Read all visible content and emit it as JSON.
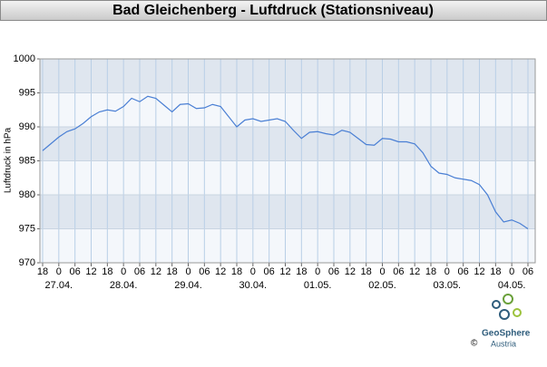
{
  "chart_data": {
    "type": "line",
    "title": "Bad Gleichenberg - Luftdruck (Stationsniveau)",
    "ylabel": "Luftdruck in hPa",
    "x_tick_labels": [
      "18",
      "0",
      "06",
      "12",
      "18",
      "0",
      "06",
      "12",
      "18",
      "0",
      "06",
      "12",
      "18",
      "0",
      "06",
      "12",
      "18",
      "0",
      "06",
      "12",
      "18",
      "0",
      "06",
      "12",
      "18",
      "0",
      "06",
      "12",
      "18",
      "0",
      "06"
    ],
    "x_date_labels": [
      "27.04.",
      "28.04.",
      "29.04.",
      "30.04.",
      "01.05.",
      "02.05.",
      "03.05.",
      "04.05."
    ],
    "series": [
      {
        "color": "#4a7fd4",
        "values": [
          986.5,
          987.5,
          988.5,
          989.3,
          989.7,
          990.5,
          991.5,
          992.2,
          992.5,
          992.3,
          993.0,
          994.2,
          993.7,
          994.5,
          994.2,
          993.2,
          992.2,
          993.3,
          993.4,
          992.7,
          992.8,
          993.3,
          993.0,
          991.5,
          990.0,
          991.0,
          991.2,
          990.8,
          991.0,
          991.2,
          990.8,
          989.5,
          988.3,
          989.2,
          989.3,
          989.0,
          988.8,
          989.5,
          989.2,
          988.3,
          987.4,
          987.3,
          988.3,
          988.2,
          987.8,
          987.8,
          987.5,
          986.2,
          984.2,
          983.2,
          983.0,
          982.5,
          982.3,
          982.1,
          981.5,
          980.0,
          977.5,
          976.0,
          976.3,
          975.8,
          975.0
        ]
      }
    ],
    "ylim": [
      970,
      1000
    ],
    "yticks": [
      970,
      975,
      980,
      985,
      990,
      995,
      1000
    ],
    "grid": true,
    "logo": {
      "name": "GeoSphere",
      "sub": "Austria",
      "copyright": "©"
    }
  }
}
